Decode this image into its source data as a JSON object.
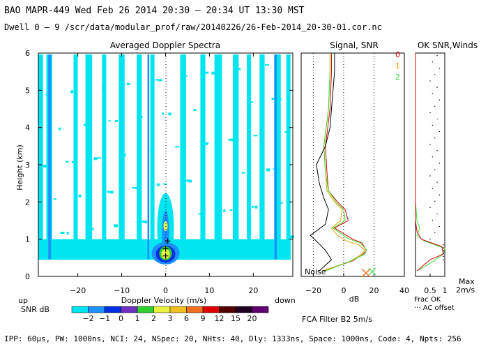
{
  "header": {
    "line1": "BAO  MAPR-449  Wed Feb 26 2014 20:30 – 20:34 UT 13:30 MST",
    "line2": "Dwell  0 –  9   /scr/data/modular_prof/raw/20140226/26-Feb-2014_20-30-01.cor.nc"
  },
  "footer": "IPP: 60μs,  PW: 1000ns,  NCI: 24,  NSpec: 20, NHts: 40,  Dly: 1333ns,  Space: 1000ns,  Code: 4,  Npts: 256",
  "labels": {
    "up": "up",
    "down": "down",
    "snr_db": "SNR dB",
    "noise": "Noise",
    "fca_filter": "FCA Filter B2  5m/s",
    "frac_ok": "Frac OK",
    "ac_offset": "··· AC offset",
    "max_label": "Max",
    "max_value": "2m/s"
  },
  "colors": {
    "scale": [
      "#00e5f0",
      "#1e90ff",
      "#0030e0",
      "#7030c0",
      "#30d030",
      "#e8f040",
      "#f0c020",
      "#f07020",
      "#e00000",
      "#500000",
      "#200020",
      "#600070"
    ],
    "background_contour": "#00e5f0",
    "line_red": "#e00000",
    "line_orange": "#f0a000",
    "line_green": "#30e030"
  },
  "chart_data": [
    {
      "type": "heatmap",
      "title": "Averaged Doppler Spectra",
      "xlabel": "Doppler Velocity (m/s)",
      "ylabel": "Height (km)",
      "xlim": [
        -29,
        29
      ],
      "ylim": [
        0,
        6
      ],
      "xticks": [
        "−20",
        "−10",
        "0",
        "10",
        "20"
      ],
      "yticks": [
        "0",
        "1",
        "2",
        "3",
        "4",
        "5",
        "6"
      ],
      "colorbar": {
        "label": "SNR dB",
        "ticks": [
          "−2",
          "−1",
          "0",
          "1",
          "2",
          "3",
          "6",
          "9",
          "12",
          "15",
          "20"
        ]
      },
      "peak": {
        "velocity": 0,
        "height": 0.6
      }
    },
    {
      "type": "line",
      "title": "Signal, SNR",
      "xlabel": "dB",
      "xlim": [
        -28,
        40
      ],
      "ylim": [
        0,
        6
      ],
      "xticks": [
        "−20",
        "0",
        "20",
        "40"
      ],
      "series": [
        {
          "name": "0",
          "color": "#e00000",
          "points": [
            [
              -13,
              0.15
            ],
            [
              6,
              0.42
            ],
            [
              13,
              0.6
            ],
            [
              15,
              0.7
            ],
            [
              12,
              0.9
            ],
            [
              6,
              1.0
            ],
            [
              2,
              1.1
            ],
            [
              -6,
              1.3
            ],
            [
              3,
              1.5
            ],
            [
              1,
              1.8
            ],
            [
              -4,
              2.0
            ],
            [
              -10,
              2.3
            ],
            [
              -11,
              2.8
            ],
            [
              -12,
              3.5
            ],
            [
              -9,
              4.5
            ],
            [
              -8,
              5.5
            ],
            [
              -8,
              6.0
            ]
          ]
        },
        {
          "name": "1",
          "color": "#f0a000",
          "points": [
            [
              -14,
              0.15
            ],
            [
              4,
              0.4
            ],
            [
              12,
              0.6
            ],
            [
              14,
              0.7
            ],
            [
              10,
              0.85
            ],
            [
              2,
              0.95
            ],
            [
              -4,
              1.1
            ],
            [
              -8,
              1.3
            ],
            [
              -2,
              1.5
            ],
            [
              -1,
              1.8
            ],
            [
              -6,
              2.0
            ],
            [
              -11,
              2.3
            ],
            [
              -12,
              2.8
            ],
            [
              -13,
              3.5
            ],
            [
              -10,
              4.5
            ],
            [
              -9,
              5.5
            ],
            [
              -9,
              6.0
            ]
          ]
        },
        {
          "name": "2",
          "color": "#30e030",
          "points": [
            [
              -12,
              0.15
            ],
            [
              5,
              0.42
            ],
            [
              14,
              0.6
            ],
            [
              15,
              0.72
            ],
            [
              11,
              0.9
            ],
            [
              4,
              1.0
            ],
            [
              0,
              1.1
            ],
            [
              -7,
              1.3
            ],
            [
              1,
              1.5
            ],
            [
              0,
              1.8
            ],
            [
              -5,
              2.0
            ],
            [
              -10,
              2.3
            ],
            [
              -12,
              2.8
            ],
            [
              -13,
              3.5
            ],
            [
              -10,
              4.5
            ],
            [
              -9,
              5.5
            ],
            [
              -9,
              6.0
            ]
          ]
        },
        {
          "name": "Noise",
          "color": "#000000",
          "points": [
            [
              -16,
              0.15
            ],
            [
              -8,
              0.45
            ],
            [
              -12,
              0.7
            ],
            [
              -18,
              0.95
            ],
            [
              -22,
              1.1
            ],
            [
              -12,
              1.4
            ],
            [
              -10,
              1.8
            ],
            [
              -13,
              2.1
            ],
            [
              -16,
              2.5
            ],
            [
              -18,
              3.0
            ],
            [
              -12,
              3.5
            ],
            [
              -9,
              4.0
            ],
            [
              -8,
              4.5
            ],
            [
              -7,
              5.0
            ],
            [
              -6,
              5.5
            ],
            [
              -6,
              6.0
            ]
          ]
        }
      ],
      "reference_lines_db": [
        -20,
        0,
        20
      ]
    },
    {
      "type": "line",
      "title": "OK SNR,Winds",
      "xticks": [
        "0.5",
        "1"
      ],
      "xlim": [
        0,
        1
      ],
      "ylim": [
        0,
        6
      ],
      "series": [
        {
          "name": "Frac OK",
          "color": "#30e030",
          "points": [
            [
              0.05,
              0.15
            ],
            [
              0.6,
              0.4
            ],
            [
              0.95,
              0.6
            ],
            [
              1.0,
              0.75
            ],
            [
              0.3,
              0.95
            ],
            [
              0.05,
              1.1
            ],
            [
              0.15,
              1.3
            ],
            [
              0.05,
              1.5
            ],
            [
              0.0,
              2.0
            ],
            [
              0.0,
              6.0
            ]
          ]
        },
        {
          "name": "Frac OK (red)",
          "color": "#e00000",
          "points": [
            [
              0.05,
              0.15
            ],
            [
              0.5,
              0.45
            ],
            [
              0.95,
              0.6
            ],
            [
              0.9,
              0.8
            ],
            [
              0.2,
              1.0
            ],
            [
              0.05,
              1.2
            ],
            [
              0.0,
              1.5
            ],
            [
              0.0,
              6.0
            ]
          ]
        }
      ]
    }
  ]
}
